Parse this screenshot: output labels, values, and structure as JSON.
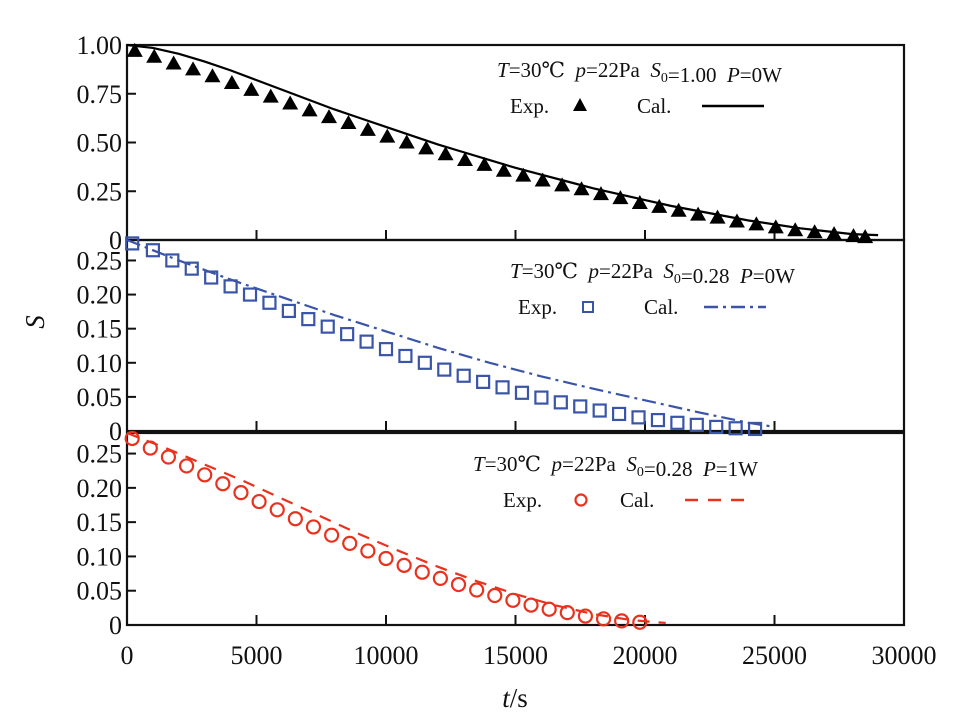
{
  "chart_data": {
    "type": "scatter",
    "xlabel": "t/s",
    "xlabel_parts": {
      "var": "t",
      "unit": "/s"
    },
    "ylabel": "S",
    "xlim": [
      0,
      30000
    ],
    "x_ticks": [
      0,
      5000,
      10000,
      15000,
      20000,
      25000,
      30000
    ],
    "x_tick_labels": [
      "0",
      "5000",
      "10000",
      "15000",
      "20000",
      "25000",
      "30000"
    ],
    "grid": false,
    "panels": [
      {
        "ylim": [
          0,
          1.0
        ],
        "y_ticks": [
          0,
          0.25,
          0.5,
          0.75,
          1.0
        ],
        "y_tick_labels": [
          "0",
          "0.25",
          "0.50",
          "0.75",
          "1.00"
        ],
        "legend_location": "top-right",
        "condition": {
          "T": "30℃",
          "p": "22Pa",
          "S0": "1.00",
          "P": "0W"
        },
        "exp_label": "Exp.",
        "cal_label": "Cal.",
        "color": "#000000",
        "exp_marker": "triangle",
        "cal_style": "solid",
        "exp": {
          "x": [
            300,
            1050,
            1800,
            2550,
            3300,
            4050,
            4800,
            5550,
            6300,
            7050,
            7800,
            8550,
            9300,
            10050,
            10800,
            11550,
            12300,
            13050,
            13800,
            14550,
            15300,
            16050,
            16800,
            17550,
            18300,
            19050,
            19800,
            20550,
            21300,
            22050,
            22800,
            23550,
            24300,
            25050,
            25800,
            26550,
            27300,
            28050,
            28500
          ],
          "y": [
            0.97,
            0.94,
            0.905,
            0.875,
            0.84,
            0.805,
            0.77,
            0.735,
            0.7,
            0.665,
            0.63,
            0.6,
            0.565,
            0.53,
            0.5,
            0.47,
            0.44,
            0.41,
            0.385,
            0.355,
            0.33,
            0.305,
            0.28,
            0.26,
            0.235,
            0.215,
            0.19,
            0.17,
            0.15,
            0.13,
            0.115,
            0.095,
            0.08,
            0.065,
            0.05,
            0.04,
            0.03,
            0.02,
            0.015
          ]
        },
        "cal": {
          "x": [
            0,
            1000,
            2000,
            3000,
            4000,
            5000,
            6000,
            7000,
            8000,
            9000,
            10000,
            11000,
            12000,
            13000,
            14000,
            15000,
            16000,
            17000,
            18000,
            19000,
            20000,
            21000,
            22000,
            23000,
            24000,
            25000,
            26000,
            27000,
            28000,
            29000
          ],
          "y": [
            1.0,
            0.985,
            0.955,
            0.915,
            0.87,
            0.82,
            0.77,
            0.72,
            0.67,
            0.625,
            0.58,
            0.535,
            0.49,
            0.45,
            0.41,
            0.37,
            0.335,
            0.3,
            0.265,
            0.235,
            0.205,
            0.175,
            0.15,
            0.125,
            0.1,
            0.08,
            0.06,
            0.045,
            0.03,
            0.025
          ]
        }
      },
      {
        "ylim": [
          0,
          0.28
        ],
        "y_ticks": [
          0,
          0.05,
          0.1,
          0.15,
          0.2,
          0.25
        ],
        "y_tick_labels": [
          "0",
          "0.05",
          "0.10",
          "0.15",
          "0.20",
          "0.25"
        ],
        "legend_location": "top-right",
        "condition": {
          "T": "30℃",
          "p": "22Pa",
          "S0": "0.28",
          "P": "0W"
        },
        "exp_label": "Exp.",
        "cal_label": "Cal.",
        "color": "#3a55a8",
        "exp_marker": "square",
        "cal_style": "dash-dot",
        "exp": {
          "x": [
            200,
            1000,
            1750,
            2500,
            3250,
            4000,
            4750,
            5500,
            6250,
            7000,
            7750,
            8500,
            9250,
            10000,
            10750,
            11500,
            12250,
            13000,
            13750,
            14500,
            15250,
            16000,
            16750,
            17500,
            18250,
            19000,
            19750,
            20500,
            21250,
            22000,
            22750,
            23500,
            24250
          ],
          "y": [
            0.275,
            0.265,
            0.25,
            0.238,
            0.225,
            0.212,
            0.2,
            0.188,
            0.176,
            0.164,
            0.153,
            0.142,
            0.131,
            0.12,
            0.11,
            0.1,
            0.09,
            0.081,
            0.072,
            0.064,
            0.056,
            0.049,
            0.042,
            0.036,
            0.03,
            0.025,
            0.02,
            0.016,
            0.012,
            0.009,
            0.006,
            0.004,
            0.003
          ]
        },
        "cal": {
          "x": [
            0,
            2000,
            4000,
            6000,
            8000,
            10000,
            12000,
            14000,
            16000,
            18000,
            20000,
            22000,
            24000,
            25000
          ],
          "y": [
            0.28,
            0.25,
            0.222,
            0.196,
            0.17,
            0.146,
            0.122,
            0.1,
            0.08,
            0.062,
            0.045,
            0.028,
            0.012,
            0.006
          ]
        }
      },
      {
        "ylim": [
          0,
          0.28
        ],
        "y_ticks": [
          0,
          0.05,
          0.1,
          0.15,
          0.2,
          0.25
        ],
        "y_tick_labels": [
          "0",
          "0.05",
          "0.10",
          "0.15",
          "0.20",
          "0.25"
        ],
        "legend_location": "top-right",
        "condition": {
          "T": "30℃",
          "p": "22Pa",
          "S0": "0.28",
          "P": "1W"
        },
        "exp_label": "Exp.",
        "cal_label": "Cal.",
        "color": "#e8321e",
        "exp_marker": "circle",
        "cal_style": "dashed",
        "exp": {
          "x": [
            200,
            900,
            1600,
            2300,
            3000,
            3700,
            4400,
            5100,
            5800,
            6500,
            7200,
            7900,
            8600,
            9300,
            10000,
            10700,
            11400,
            12100,
            12800,
            13500,
            14200,
            14900,
            15600,
            16300,
            17000,
            17700,
            18400,
            19100,
            19800
          ],
          "y": [
            0.272,
            0.258,
            0.245,
            0.232,
            0.219,
            0.206,
            0.193,
            0.18,
            0.168,
            0.155,
            0.143,
            0.131,
            0.119,
            0.108,
            0.097,
            0.087,
            0.077,
            0.068,
            0.059,
            0.051,
            0.043,
            0.036,
            0.029,
            0.023,
            0.018,
            0.013,
            0.009,
            0.006,
            0.004
          ]
        },
        "cal": {
          "x": [
            0,
            1500,
            3000,
            4500,
            6000,
            7500,
            9000,
            10500,
            12000,
            13500,
            15000,
            16500,
            18000,
            19500,
            20800
          ],
          "y": [
            0.28,
            0.258,
            0.234,
            0.21,
            0.184,
            0.158,
            0.132,
            0.108,
            0.085,
            0.064,
            0.045,
            0.029,
            0.016,
            0.007,
            0.003
          ]
        }
      }
    ]
  }
}
